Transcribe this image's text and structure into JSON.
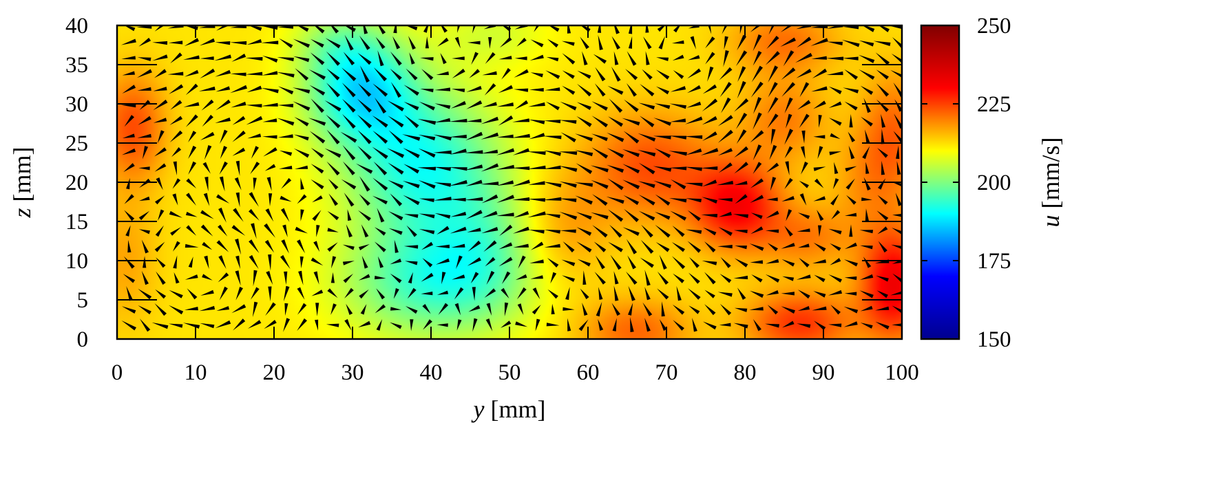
{
  "chart_data": {
    "type": "heatmap",
    "subtype": "vector-field-over-contour",
    "xlabel": {
      "symbol": "y",
      "unit": " [mm]"
    },
    "ylabel": {
      "symbol": "z",
      "unit": " [mm]"
    },
    "colorbar_label": {
      "symbol": "u",
      "unit": " [mm/s]"
    },
    "xlim": [
      0,
      100
    ],
    "ylim": [
      0,
      40
    ],
    "x_ticks": [
      "0",
      "10",
      "20",
      "30",
      "40",
      "50",
      "60",
      "70",
      "80",
      "90",
      "100"
    ],
    "y_ticks": [
      "0",
      "5",
      "10",
      "15",
      "20",
      "25",
      "30",
      "35",
      "40"
    ],
    "colorbar": {
      "range": [
        150,
        250
      ],
      "ticks": [
        "150",
        "175",
        "200",
        "225",
        "250"
      ],
      "colormap": [
        "#00008f",
        "#0000ff",
        "#00ffff",
        "#ffff00",
        "#ff0000",
        "#800000"
      ]
    },
    "field": {
      "background_u": 212,
      "blobs": [
        {
          "y": 31,
          "z": 32,
          "u": -22,
          "sy": 5,
          "sz": 5
        },
        {
          "y": 39,
          "z": 22,
          "u": -20,
          "sy": 7,
          "sz": 7
        },
        {
          "y": 40,
          "z": 7,
          "u": -16,
          "sy": 8,
          "sz": 5
        },
        {
          "y": 47,
          "z": 12,
          "u": -8,
          "sy": 5,
          "sz": 6
        },
        {
          "y": 28,
          "z": 38,
          "u": -6,
          "sy": 4,
          "sz": 3
        },
        {
          "y": 48,
          "z": 39,
          "u": -5,
          "sy": 5,
          "sz": 3
        },
        {
          "y": 2,
          "z": 27,
          "u": 12,
          "sy": 3,
          "sz": 5
        },
        {
          "y": 1,
          "z": 10,
          "u": 5,
          "sy": 3,
          "sz": 6
        },
        {
          "y": 68,
          "z": 22,
          "u": 12,
          "sy": 6,
          "sz": 5
        },
        {
          "y": 66,
          "z": 1,
          "u": 10,
          "sy": 5,
          "sz": 3
        },
        {
          "y": 79,
          "z": 17,
          "u": 18,
          "sy": 4,
          "sz": 4
        },
        {
          "y": 85,
          "z": 28,
          "u": 8,
          "sy": 4,
          "sz": 4
        },
        {
          "y": 85,
          "z": 38,
          "u": 9,
          "sy": 5,
          "sz": 3
        },
        {
          "y": 99,
          "z": 7,
          "u": 20,
          "sy": 3,
          "sz": 5
        },
        {
          "y": 99,
          "z": 26,
          "u": 10,
          "sy": 3,
          "sz": 6
        },
        {
          "y": 87,
          "z": 2,
          "u": 14,
          "sy": 5,
          "sz": 3
        },
        {
          "y": 88,
          "z": 13,
          "u": 8,
          "sy": 4,
          "sz": 3
        },
        {
          "y": 57,
          "z": 14,
          "u": 6,
          "sy": 4,
          "sz": 5
        },
        {
          "y": 95,
          "z": 20,
          "u": 5,
          "sy": 3,
          "sz": 5
        }
      ],
      "vector_grid": {
        "y_start": 1.5,
        "y_step": 2,
        "z_start": 1.8,
        "z_step": 2
      },
      "vortices": [
        {
          "y": 24,
          "z": 22,
          "s": 1,
          "r": 12
        },
        {
          "y": 38,
          "z": 31,
          "s": -1,
          "r": 9
        },
        {
          "y": 56,
          "z": 10,
          "s": 1,
          "r": 10
        },
        {
          "y": 72,
          "z": 33,
          "s": -1,
          "r": 9
        },
        {
          "y": 12,
          "z": 8,
          "s": -1,
          "r": 8
        },
        {
          "y": 90,
          "z": 30,
          "s": 1,
          "r": 8
        }
      ],
      "mean_flow": {
        "ly": -0.7,
        "lz": 0.1
      }
    },
    "boundary_ticks": [
      {
        "edge": "top",
        "at": [
          10,
          20,
          30,
          40,
          50,
          60,
          70,
          80,
          90
        ]
      },
      {
        "edge": "bottom",
        "at": [
          10,
          20,
          30,
          40,
          50,
          60,
          70,
          80,
          90
        ]
      },
      {
        "edge": "left",
        "at": [
          5,
          10,
          15,
          20,
          25,
          30,
          35
        ]
      },
      {
        "edge": "right",
        "at": [
          5,
          10,
          15,
          20,
          25,
          30,
          35
        ]
      }
    ]
  }
}
